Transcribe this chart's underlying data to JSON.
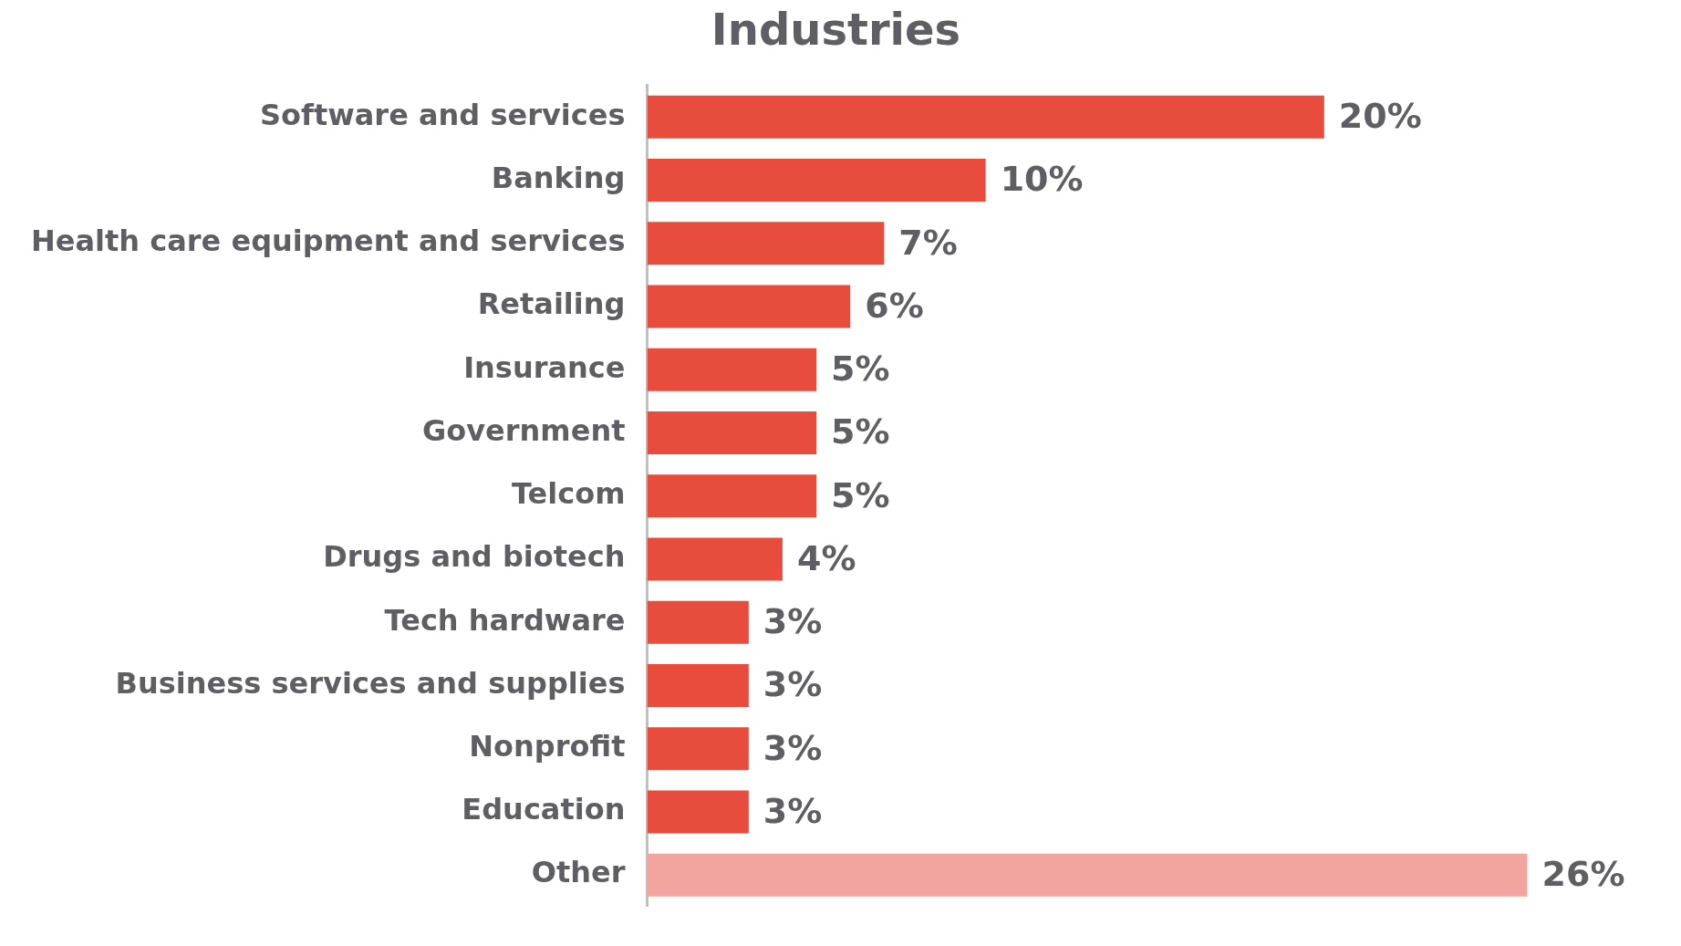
{
  "chart_data": {
    "type": "bar",
    "orientation": "horizontal",
    "title": "Industries",
    "categories": [
      "Software and services",
      "Banking",
      "Health care equipment and services",
      "Retailing",
      "Insurance",
      "Government",
      "Telcom",
      "Drugs and biotech",
      "Tech hardware",
      "Business services and supplies",
      "Nonprofit",
      "Education",
      "Other"
    ],
    "values": [
      20,
      10,
      7,
      6,
      5,
      5,
      5,
      4,
      3,
      3,
      3,
      3,
      26
    ],
    "colors": [
      "#e74c3c",
      "#e74c3c",
      "#e74c3c",
      "#e74c3c",
      "#e74c3c",
      "#e74c3c",
      "#e74c3c",
      "#e74c3c",
      "#e74c3c",
      "#e74c3c",
      "#e74c3c",
      "#e74c3c",
      "#f2a59f"
    ],
    "value_labels": [
      "20%",
      "10%",
      "7%",
      "6%",
      "5%",
      "5%",
      "5%",
      "4%",
      "3%",
      "3%",
      "3%",
      "3%",
      "26%"
    ],
    "legend": false
  }
}
